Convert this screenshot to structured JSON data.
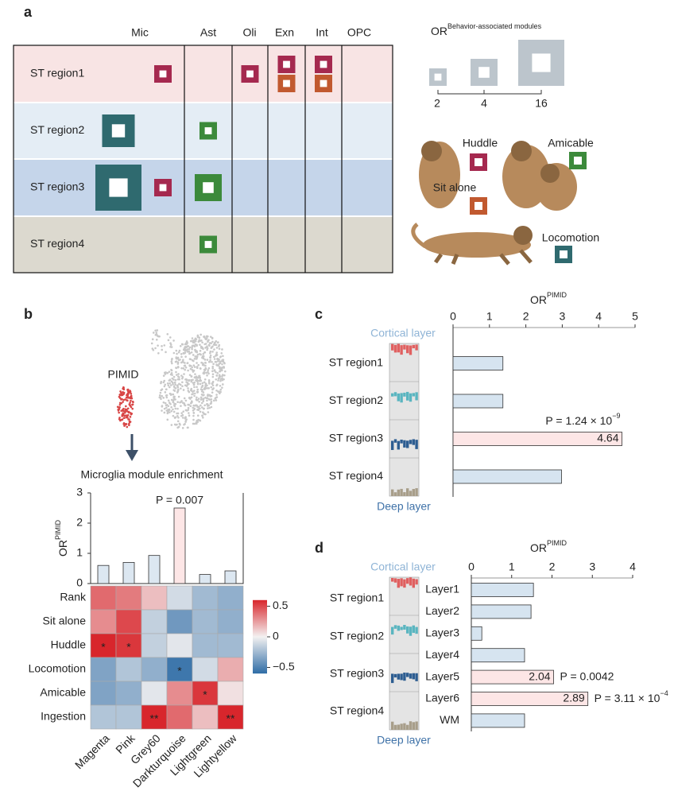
{
  "chart_data": [
    {
      "type": "square-matrix",
      "panel": "a",
      "columns": [
        "Mic",
        "Ast",
        "Oli",
        "Exn",
        "Int",
        "OPC"
      ],
      "rows": [
        "ST region1",
        "ST region2",
        "ST region3",
        "ST region4"
      ],
      "row_colors": [
        "#f8e4e4",
        "#e4edf5",
        "#c5d5ea",
        "#dcd9cf"
      ],
      "cells": [
        {
          "row": 0,
          "column": 0,
          "behavior": "Huddle",
          "value": 2
        },
        {
          "row": 0,
          "column": 2,
          "behavior": "Huddle",
          "value": 2
        },
        {
          "row": 0,
          "column": 3,
          "behavior": "Huddle",
          "value": 2
        },
        {
          "row": 0,
          "column": 3,
          "behavior": "Sit alone",
          "value": 2
        },
        {
          "row": 0,
          "column": 4,
          "behavior": "Huddle",
          "value": 2
        },
        {
          "row": 0,
          "column": 4,
          "behavior": "Sit alone",
          "value": 2
        },
        {
          "row": 1,
          "column": 0,
          "behavior": "Locomotion",
          "value": 6
        },
        {
          "row": 1,
          "column": 1,
          "behavior": "Amicable",
          "value": 2
        },
        {
          "row": 2,
          "column": 0,
          "behavior": "Locomotion",
          "value": 16
        },
        {
          "row": 2,
          "column": 0,
          "behavior": "Huddle",
          "value": 2
        },
        {
          "row": 2,
          "column": 1,
          "behavior": "Amicable",
          "value": 4
        },
        {
          "row": 3,
          "column": 1,
          "behavior": "Amicable",
          "value": 2
        }
      ],
      "size_legend": {
        "title": "OR",
        "title_superscript": "Behavior-associated modules",
        "values": [
          2,
          4,
          16
        ],
        "color": "#bcc5cc"
      },
      "behaviors": [
        {
          "name": "Huddle",
          "color": "#a5294f"
        },
        {
          "name": "Amicable",
          "color": "#3c8a3b"
        },
        {
          "name": "Sit alone",
          "color": "#c1592f"
        },
        {
          "name": "Locomotion",
          "color": "#2f6a6f"
        }
      ]
    },
    {
      "type": "bar-heatmap",
      "panel": "b",
      "cluster_label": "PIMID",
      "title": "Microglia module enrichment",
      "ylabel": {
        "text": "OR",
        "superscript": "PIMID"
      },
      "categories": [
        "Magenta",
        "Pink",
        "Grey60",
        "Darkturquoise",
        "Lightgreen",
        "Lightyellow"
      ],
      "values": [
        0.6,
        0.7,
        0.93,
        2.5,
        0.3,
        0.42
      ],
      "bar_colors": [
        "#dce7f1",
        "#dce7f1",
        "#dce7f1",
        "#fde6e6",
        "#dce7f1",
        "#dce7f1"
      ],
      "ylim": [
        0,
        3
      ],
      "yticks": [
        0,
        1,
        2,
        3
      ],
      "annotation": "P = 0.007",
      "heatmap": {
        "rows": [
          "Rank",
          "Sit alone",
          "Huddle",
          "Locomotion",
          "Amicable",
          "Ingestion"
        ],
        "values": [
          [
            0.4,
            0.35,
            0.15,
            -0.1,
            -0.25,
            -0.3
          ],
          [
            0.3,
            0.5,
            -0.15,
            -0.4,
            -0.25,
            -0.3
          ],
          [
            0.6,
            0.55,
            -0.15,
            -0.05,
            -0.25,
            -0.25
          ],
          [
            -0.35,
            -0.2,
            -0.3,
            -0.55,
            -0.1,
            0.2
          ],
          [
            -0.35,
            -0.3,
            -0.05,
            0.3,
            0.55,
            0.05
          ],
          [
            -0.2,
            -0.2,
            0.6,
            0.4,
            0.15,
            0.6
          ]
        ],
        "stars": [
          [
            null,
            null,
            null,
            null,
            null,
            null
          ],
          [
            null,
            null,
            null,
            null,
            null,
            null
          ],
          [
            "*",
            "*",
            null,
            null,
            null,
            null
          ],
          [
            null,
            null,
            null,
            "*",
            null,
            null
          ],
          [
            null,
            null,
            null,
            null,
            "*",
            null
          ],
          [
            null,
            null,
            "**",
            null,
            null,
            "**"
          ]
        ],
        "zlim": [
          -0.6,
          0.6
        ],
        "zticks": [
          0.5,
          0,
          {
            "value": -0.5,
            "label": "−0.5"
          }
        ],
        "colormap": [
          "#2e6ca6",
          "#f3f1f1",
          "#d8262c"
        ]
      }
    },
    {
      "type": "hbar",
      "panel": "c",
      "xlabel": {
        "text": "OR",
        "superscript": "PIMID"
      },
      "top_label": "Cortical layer",
      "bottom_label": "Deep layer",
      "categories": [
        "ST region1",
        "ST region2",
        "ST region3",
        "ST region4"
      ],
      "values": [
        1.37,
        1.37,
        4.64,
        2.98
      ],
      "value_labels": [
        null,
        null,
        "4.64",
        null
      ],
      "colors": [
        "#d6e4f0",
        "#d6e4f0",
        "#fde6e6",
        "#d6e4f0"
      ],
      "annotations": [
        null,
        null,
        {
          "text": "P = 1.24 × 10",
          "superscript": "−9"
        },
        null
      ],
      "xlim": [
        0,
        5
      ],
      "xticks": [
        0,
        1,
        2,
        3,
        4,
        5
      ]
    },
    {
      "type": "hbar",
      "panel": "d",
      "xlabel": {
        "text": "OR",
        "superscript": "PIMID"
      },
      "top_label": "Cortical layer",
      "bottom_label": "Deep layer",
      "groups": [
        "ST region1",
        "ST region2",
        "ST region3",
        "ST region4"
      ],
      "categories": [
        "Layer1",
        "Layer2",
        "Layer3",
        "Layer4",
        "Layer5",
        "Layer6",
        "WM"
      ],
      "values": [
        1.54,
        1.48,
        0.26,
        1.32,
        2.04,
        2.89,
        1.32
      ],
      "value_labels": [
        null,
        null,
        null,
        null,
        "2.04",
        "2.89",
        null
      ],
      "colors": [
        "#d6e4f0",
        "#d6e4f0",
        "#d6e4f0",
        "#d6e4f0",
        "#fde6e6",
        "#fde6e6",
        "#d6e4f0"
      ],
      "annotations": [
        null,
        null,
        null,
        null,
        {
          "text": "P = 0.0042"
        },
        {
          "text": "P = 3.11 × 10",
          "superscript": "−4"
        },
        null
      ],
      "xlim": [
        0,
        4
      ],
      "xticks": [
        0,
        1,
        2,
        3,
        4
      ]
    }
  ]
}
